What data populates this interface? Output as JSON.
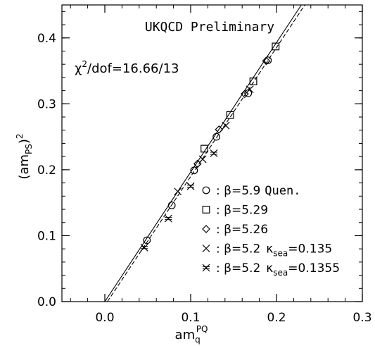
{
  "chart_data": {
    "type": "scatter",
    "title": "UKQCD Preliminary",
    "annotation": {
      "prefix": "χ",
      "sup": "2",
      "text": "/dof=16.66/13"
    },
    "xlabel": {
      "main": "am",
      "sub": "q",
      "sup": "PQ"
    },
    "ylabel": {
      "main": "(am",
      "sub": "PS",
      "close": ")",
      "sup": "2"
    },
    "xlim": [
      -0.05,
      0.3
    ],
    "ylim": [
      0.0,
      0.45
    ],
    "xticks": [
      0.0,
      0.1,
      0.2,
      0.3
    ],
    "xtick_labels": [
      "0.0",
      "0.1",
      "0.2",
      "0.3"
    ],
    "yticks": [
      0.0,
      0.1,
      0.2,
      0.3,
      0.4
    ],
    "ytick_labels": [
      "0.0",
      "0.1",
      "0.2",
      "0.3",
      "0.4"
    ],
    "x_minor_step": 0.02,
    "y_minor_step": 0.02,
    "grid": false,
    "legend_position": "bottom-right",
    "series": [
      {
        "marker": "circle",
        "legend": {
          "beta": "β=5.9",
          "extra": "Quen.",
          "kappa": null
        },
        "points": [
          [
            0.049,
            0.093
          ],
          [
            0.078,
            0.146
          ],
          [
            0.104,
            0.199
          ],
          [
            0.13,
            0.25
          ],
          [
            0.167,
            0.316
          ],
          [
            0.19,
            0.366
          ]
        ]
      },
      {
        "marker": "square",
        "legend": {
          "beta": "β=5.29",
          "extra": "",
          "kappa": null
        },
        "points": [
          [
            0.116,
            0.232
          ],
          [
            0.146,
            0.283
          ],
          [
            0.173,
            0.334
          ],
          [
            0.199,
            0.387
          ]
        ]
      },
      {
        "marker": "diamond",
        "legend": {
          "beta": "β=5.26",
          "extra": "",
          "kappa": null
        },
        "points": [
          [
            0.108,
            0.209
          ],
          [
            0.133,
            0.261
          ],
          [
            0.163,
            0.315
          ],
          [
            0.188,
            0.365
          ]
        ]
      },
      {
        "marker": "cross",
        "legend": {
          "beta": "β=5.2",
          "extra": "",
          "kappa": {
            "sym": "κ",
            "sub": "sea",
            "val": "=0.135"
          }
        },
        "points": [
          [
            0.085,
            0.167
          ],
          [
            0.114,
            0.216
          ],
          [
            0.141,
            0.267
          ],
          [
            0.169,
            0.322
          ]
        ]
      },
      {
        "marker": "starcross",
        "legend": {
          "beta": "β=5.2",
          "extra": "",
          "kappa": {
            "sym": "κ",
            "sub": "sea",
            "val": "=0.1355"
          }
        },
        "points": [
          [
            0.046,
            0.082
          ],
          [
            0.074,
            0.126
          ],
          [
            0.1,
            0.175
          ],
          [
            0.127,
            0.225
          ]
        ]
      }
    ],
    "fit_lines": [
      {
        "style": "solid",
        "from": [
          0.0,
          0.0
        ],
        "to": [
          0.229,
          0.45
        ]
      },
      {
        "style": "dashed",
        "from": [
          0.003,
          0.0
        ],
        "to": [
          0.233,
          0.45
        ]
      }
    ]
  }
}
